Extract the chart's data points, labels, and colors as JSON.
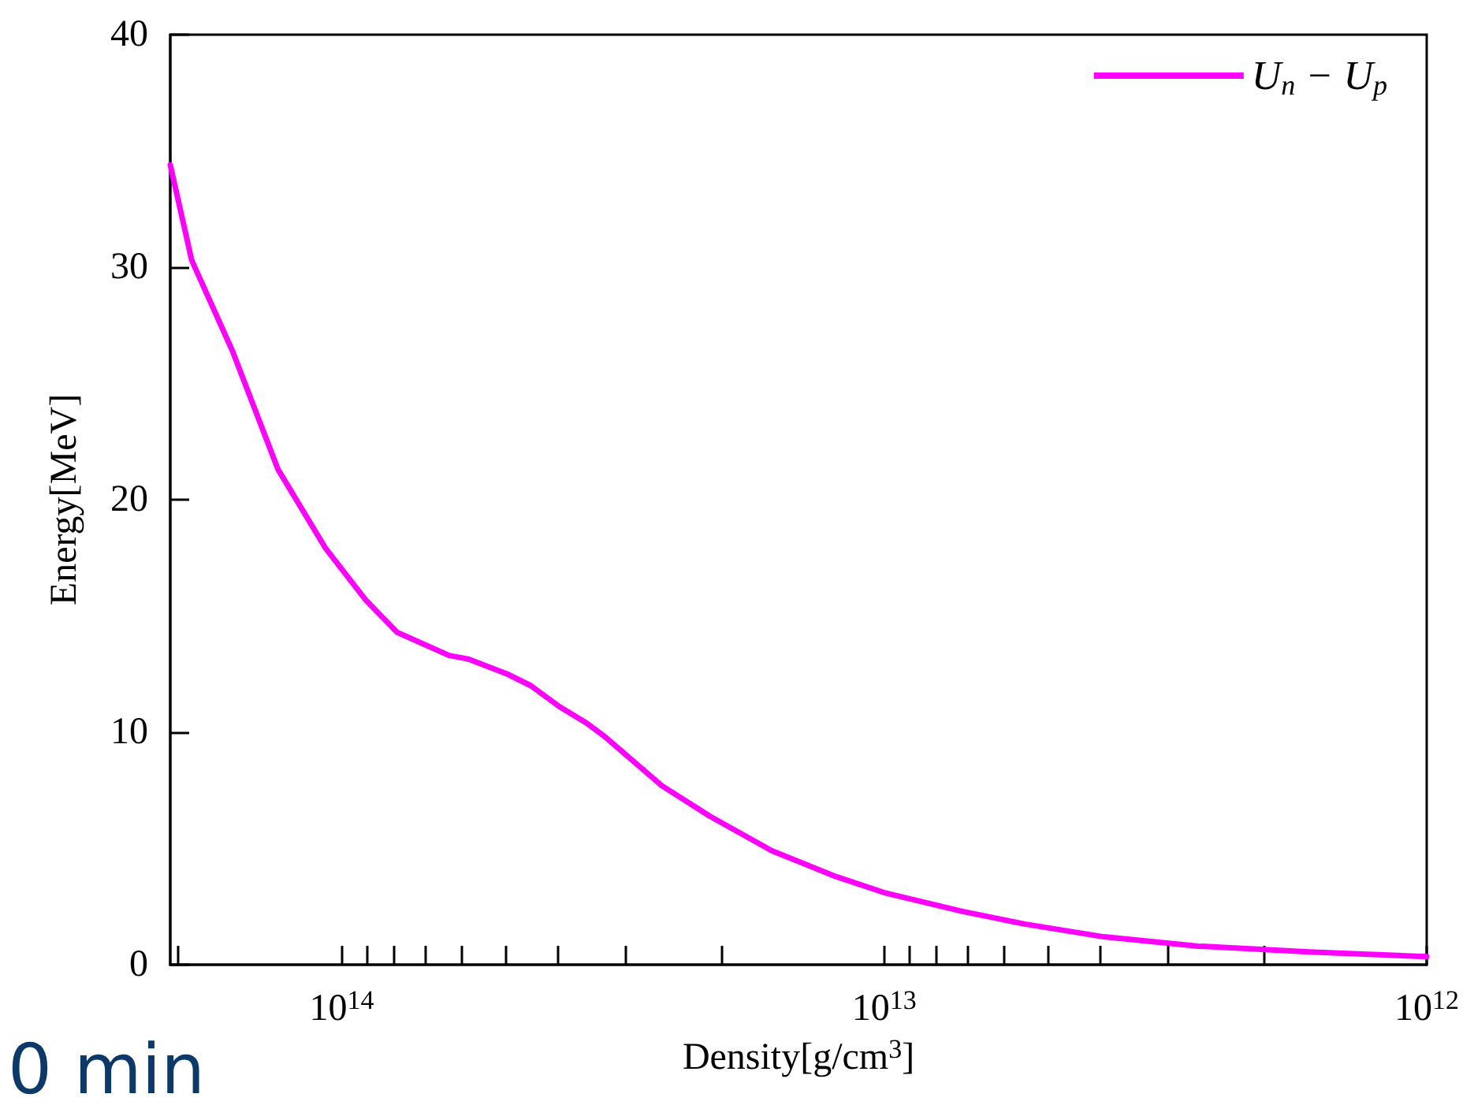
{
  "chart_data": {
    "type": "line",
    "xlabel": "Density[g/cm$^{3}$]",
    "ylabel": "Energy[MeV]",
    "log": "x",
    "grid": false,
    "legend": "top right",
    "marker": "none",
    "line_style": "solid",
    "xlim": [
      207000000000000.0,
      1000000000000.0
    ],
    "ylim": [
      0,
      40
    ],
    "xticks": [
      {
        "value": 200000000000000.0,
        "label": null
      },
      {
        "value": 100000000000000.0,
        "label": "10$^{14}$"
      },
      {
        "value": 90000000000000.0,
        "label": null
      },
      {
        "value": 80000000000000.0,
        "label": null
      },
      {
        "value": 70000000000000.0,
        "label": null
      },
      {
        "value": 60000000000000.0,
        "label": null
      },
      {
        "value": 50000000000000.0,
        "label": null
      },
      {
        "value": 40000000000000.0,
        "label": null
      },
      {
        "value": 30000000000000.0,
        "label": null
      },
      {
        "value": 20000000000000.0,
        "label": null
      },
      {
        "value": 10000000000000.0,
        "label": "10$^{13}$"
      },
      {
        "value": 9000000000000.0,
        "label": null
      },
      {
        "value": 8000000000000.0,
        "label": null
      },
      {
        "value": 7000000000000.0,
        "label": null
      },
      {
        "value": 6000000000000.0,
        "label": null
      },
      {
        "value": 5000000000000.0,
        "label": null
      },
      {
        "value": 4000000000000.0,
        "label": null
      },
      {
        "value": 3000000000000.0,
        "label": null
      },
      {
        "value": 2000000000000.0,
        "label": null
      },
      {
        "value": 1000000000000.0,
        "label": "10$^{12}$"
      }
    ],
    "yticks": [
      0,
      10,
      20,
      30,
      40
    ],
    "annotations": [
      "0 min"
    ],
    "series": [
      {
        "name": "U$_{n}$ − U$_{p}$",
        "color": "#ff00ff",
        "x": [
          207000000000000.0,
          189000000000000.0,
          159000000000000.0,
          131000000000000.0,
          107000000000000.0,
          90400000000000.0,
          79100000000000.0,
          63400000000000.0,
          58500000000000.0,
          49500000000000.0,
          44800000000000.0,
          39700000000000.0,
          35400000000000.0,
          32700000000000.0,
          25700000000000.0,
          21000000000000.0,
          16100000000000.0,
          12300000000000.0,
          10000000000000.0,
          7200000000000.0,
          5510000000000.0,
          3940000000000.0,
          2640000000000.0,
          1650000000000.0,
          1000000000000.0
        ],
        "values": [
          34.4,
          30.3,
          26.4,
          21.3,
          17.9,
          15.7,
          14.3,
          13.3,
          13.15,
          12.5,
          12.0,
          11.1,
          10.4,
          9.8,
          7.7,
          6.4,
          4.9,
          3.8,
          3.1,
          2.3,
          1.75,
          1.2,
          0.8,
          0.55,
          0.35
        ]
      }
    ]
  }
}
